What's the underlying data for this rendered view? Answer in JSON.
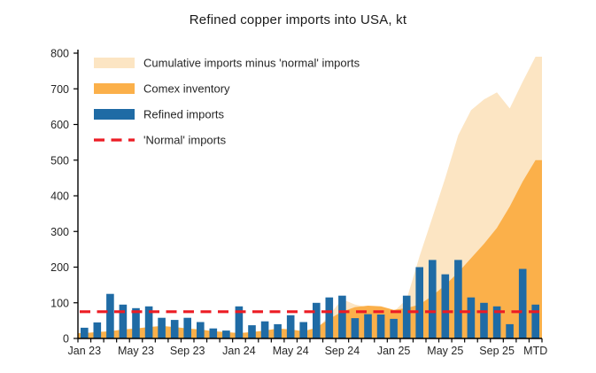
{
  "title": "Refined copper imports into USA, kt",
  "colors": {
    "cumulative_area": "#FCE5C3",
    "comex_area": "#FBB04A",
    "bars": "#1F6BA5",
    "normal_line": "#EC1C24",
    "axis": "#000000",
    "text": "#262626"
  },
  "legend": [
    {
      "label": "Cumulative imports minus 'normal' imports",
      "type": "area",
      "color": "#FCE5C3"
    },
    {
      "label": "Comex inventory",
      "type": "area",
      "color": "#FBB04A"
    },
    {
      "label": "Refined imports",
      "type": "bar",
      "color": "#1F6BA5"
    },
    {
      "label": "'Normal' imports",
      "type": "dashed-line",
      "color": "#EC1C24"
    }
  ],
  "chart_data": {
    "type": "bar",
    "title": "Refined copper imports into USA, kt",
    "xlabel": "",
    "ylabel": "kt",
    "ylim": [
      0,
      800
    ],
    "ytick_step": 100,
    "grid": false,
    "legend_position": "top-left-inside",
    "categories": [
      "Jan 23",
      "Feb 23",
      "Mar 23",
      "Apr 23",
      "May 23",
      "Jun 23",
      "Jul 23",
      "Aug 23",
      "Sep 23",
      "Oct 23",
      "Nov 23",
      "Dec 23",
      "Jan 24",
      "Feb 24",
      "Mar 24",
      "Apr 24",
      "May 24",
      "Jun 24",
      "Jul 24",
      "Aug 24",
      "Sep 24",
      "Oct 24",
      "Nov 24",
      "Dec 24",
      "Jan 25",
      "Feb 25",
      "Mar 25",
      "Apr 25",
      "May 25",
      "Jun 25",
      "Jul 25",
      "Aug 25",
      "Sep 25",
      "Oct 25",
      "Nov 25",
      "MTD"
    ],
    "x_tick_labels": [
      {
        "index": 0,
        "label": "Jan 23"
      },
      {
        "index": 4,
        "label": "May 23"
      },
      {
        "index": 8,
        "label": "Sep 23"
      },
      {
        "index": 12,
        "label": "Jan 24"
      },
      {
        "index": 16,
        "label": "May 24"
      },
      {
        "index": 20,
        "label": "Sep 24"
      },
      {
        "index": 24,
        "label": "Jan 25"
      },
      {
        "index": 28,
        "label": "May 25"
      },
      {
        "index": 32,
        "label": "Sep 25"
      },
      {
        "index": 35,
        "label": "MTD"
      }
    ],
    "series": [
      {
        "name": "Cumulative imports minus 'normal' imports",
        "type": "area",
        "color": "#FCE5C3",
        "values": [
          0,
          0,
          0,
          0,
          0,
          0,
          0,
          0,
          0,
          0,
          0,
          0,
          0,
          0,
          0,
          0,
          0,
          0,
          25,
          65,
          110,
          95,
          88,
          80,
          75,
          110,
          230,
          340,
          450,
          570,
          640,
          670,
          690,
          645,
          720,
          790
        ]
      },
      {
        "name": "Comex inventory",
        "type": "area",
        "color": "#FBB04A",
        "values": [
          15,
          18,
          20,
          25,
          28,
          32,
          35,
          32,
          28,
          25,
          20,
          18,
          15,
          18,
          22,
          28,
          25,
          20,
          30,
          55,
          75,
          88,
          92,
          90,
          80,
          85,
          95,
          120,
          150,
          185,
          225,
          265,
          310,
          370,
          440,
          500
        ]
      },
      {
        "name": "Refined imports",
        "type": "bar",
        "color": "#1F6BA5",
        "values": [
          30,
          45,
          125,
          95,
          85,
          90,
          58,
          52,
          58,
          46,
          28,
          22,
          90,
          37,
          48,
          40,
          65,
          46,
          100,
          115,
          120,
          57,
          68,
          67,
          55,
          120,
          200,
          220,
          180,
          220,
          115,
          100,
          90,
          40,
          195,
          95
        ]
      },
      {
        "name": "'Normal' imports",
        "type": "dashed-line",
        "color": "#EC1C24",
        "value": 75
      }
    ]
  }
}
